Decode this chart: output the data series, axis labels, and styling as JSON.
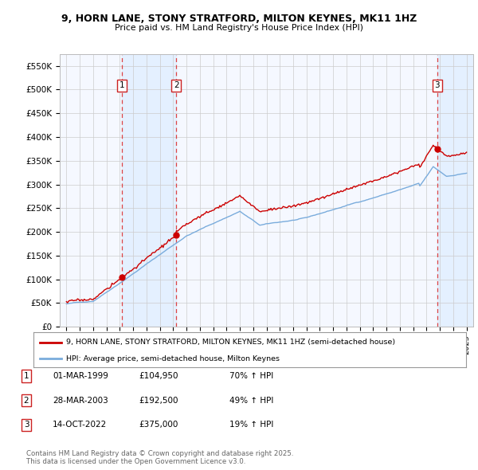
{
  "title1": "9, HORN LANE, STONY STRATFORD, MILTON KEYNES, MK11 1HZ",
  "title2": "Price paid vs. HM Land Registry's House Price Index (HPI)",
  "ylim": [
    0,
    575000
  ],
  "yticks": [
    0,
    50000,
    100000,
    150000,
    200000,
    250000,
    300000,
    350000,
    400000,
    450000,
    500000,
    550000
  ],
  "ytick_labels": [
    "£0",
    "£50K",
    "£100K",
    "£150K",
    "£200K",
    "£250K",
    "£300K",
    "£350K",
    "£400K",
    "£450K",
    "£500K",
    "£550K"
  ],
  "sale_dates": [
    1999.17,
    2003.23,
    2022.79
  ],
  "sale_prices": [
    104950,
    192500,
    375000
  ],
  "sale_labels": [
    "1",
    "2",
    "3"
  ],
  "vline_color": "#DD4444",
  "sale_color": "#CC0000",
  "hpi_color": "#7AACDC",
  "legend_sale_label": "9, HORN LANE, STONY STRATFORD, MILTON KEYNES, MK11 1HZ (semi-detached house)",
  "legend_hpi_label": "HPI: Average price, semi-detached house, Milton Keynes",
  "table_entries": [
    {
      "num": "1",
      "date": "01-MAR-1999",
      "price": "£104,950",
      "change": "70% ↑ HPI"
    },
    {
      "num": "2",
      "date": "28-MAR-2003",
      "price": "£192,500",
      "change": "49% ↑ HPI"
    },
    {
      "num": "3",
      "date": "14-OCT-2022",
      "price": "£375,000",
      "change": "19% ↑ HPI"
    }
  ],
  "footnote": "Contains HM Land Registry data © Crown copyright and database right 2025.\nThis data is licensed under the Open Government Licence v3.0.",
  "background_color": "#FFFFFF",
  "plot_bg_color": "#F5F8FF",
  "grid_color": "#CCCCCC"
}
